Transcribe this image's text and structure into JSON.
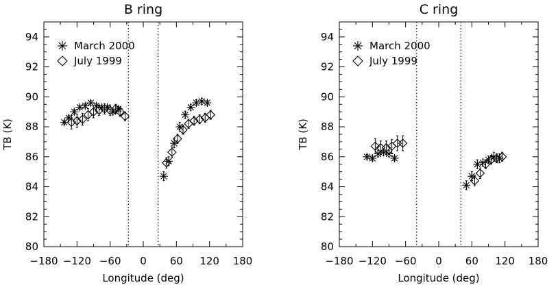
{
  "chart_data": [
    {
      "type": "scatter",
      "title": "B ring",
      "xlabel": "Longitude (deg)",
      "ylabel": "TB (K)",
      "xlim": [
        -180,
        180
      ],
      "ylim": [
        80,
        95
      ],
      "xticks": [
        -180,
        -120,
        -60,
        0,
        60,
        120,
        180
      ],
      "xtick_labels": [
        "−180",
        "−120",
        "−60",
        "0",
        "60",
        "120",
        "180"
      ],
      "yticks": [
        80,
        82,
        84,
        86,
        88,
        90,
        92,
        94
      ],
      "ytick_labels": [
        "80",
        "82",
        "84",
        "86",
        "88",
        "90",
        "92",
        "94"
      ],
      "vlines": [
        -27,
        27
      ],
      "legend_position": "top-left",
      "series": [
        {
          "name": "March 2000",
          "marker": "asterisk",
          "x": [
            -143,
            -135,
            -125,
            -115,
            -105,
            -95,
            -85,
            -75,
            -65,
            -55,
            -45,
            37,
            46,
            56,
            66,
            76,
            86,
            96,
            106,
            116
          ],
          "y": [
            88.3,
            88.6,
            89.0,
            89.3,
            89.4,
            89.6,
            89.4,
            89.3,
            89.3,
            89.0,
            89.2,
            84.7,
            85.7,
            86.9,
            88.0,
            88.8,
            89.3,
            89.6,
            89.7,
            89.6
          ],
          "err": [
            0.15,
            0.15,
            0.15,
            0.15,
            0.15,
            0.15,
            0.15,
            0.15,
            0.15,
            0.15,
            0.15,
            0.3,
            0.3,
            0.3,
            0.3,
            0.25,
            0.2,
            0.2,
            0.2,
            0.15
          ]
        },
        {
          "name": "July 1999",
          "marker": "diamond",
          "x": [
            -130,
            -120,
            -110,
            -100,
            -90,
            -80,
            -70,
            -60,
            -50,
            -42,
            -33,
            42,
            52,
            62,
            72,
            82,
            92,
            102,
            112,
            122
          ],
          "y": [
            88.3,
            88.4,
            88.5,
            88.8,
            89.0,
            89.1,
            89.2,
            89.1,
            89.2,
            89.0,
            88.7,
            85.6,
            86.3,
            87.2,
            87.8,
            88.2,
            88.4,
            88.5,
            88.6,
            88.8
          ],
          "err": [
            0.45,
            0.45,
            0.4,
            0.4,
            0.4,
            0.35,
            0.35,
            0.35,
            0.3,
            0.3,
            0.3,
            0.35,
            0.35,
            0.3,
            0.3,
            0.3,
            0.3,
            0.3,
            0.3,
            0.3
          ]
        }
      ]
    },
    {
      "type": "scatter",
      "title": "C ring",
      "xlabel": "Longitude (deg)",
      "ylabel": "TB (K)",
      "xlim": [
        -180,
        180
      ],
      "ylim": [
        80,
        95
      ],
      "xticks": [
        -180,
        -120,
        -60,
        0,
        60,
        120,
        180
      ],
      "xtick_labels": [
        "−180",
        "−120",
        "−60",
        "0",
        "60",
        "120",
        "180"
      ],
      "yticks": [
        80,
        82,
        84,
        86,
        88,
        90,
        92,
        94
      ],
      "ytick_labels": [
        "80",
        "82",
        "84",
        "86",
        "88",
        "90",
        "92",
        "94"
      ],
      "vlines": [
        -40,
        40
      ],
      "legend_position": "top-left",
      "series": [
        {
          "name": "March 2000",
          "marker": "asterisk",
          "x": [
            -130,
            -120,
            -110,
            -100,
            -90,
            -80,
            50,
            60,
            70,
            80,
            90,
            100,
            110
          ],
          "y": [
            86.0,
            85.9,
            86.2,
            86.3,
            86.2,
            85.9,
            84.1,
            84.7,
            85.5,
            85.6,
            85.8,
            86.0,
            85.9
          ],
          "err": [
            0.15,
            0.15,
            0.2,
            0.2,
            0.2,
            0.15,
            0.3,
            0.3,
            0.3,
            0.25,
            0.25,
            0.3,
            0.3
          ]
        },
        {
          "name": "July 1999",
          "marker": "diamond",
          "x": [
            -115,
            -105,
            -95,
            -85,
            -75,
            -65,
            65,
            75,
            85,
            95,
            105,
            115
          ],
          "y": [
            86.7,
            86.6,
            86.6,
            86.7,
            86.9,
            86.9,
            84.4,
            84.9,
            85.5,
            85.8,
            85.9,
            86.0
          ],
          "err": [
            0.5,
            0.45,
            0.45,
            0.45,
            0.5,
            0.5,
            0.35,
            0.35,
            0.3,
            0.3,
            0.3,
            0.3
          ]
        }
      ]
    }
  ]
}
